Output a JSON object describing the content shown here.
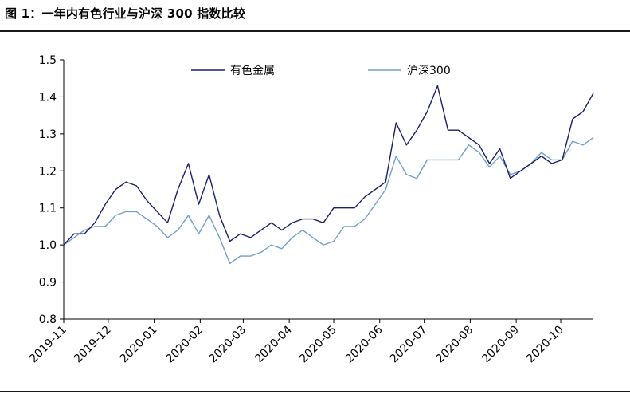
{
  "figure": {
    "title": "图 1：一年内有色行业与沪深 300 指数比较"
  },
  "chart_data": {
    "type": "line",
    "title": "",
    "xlabel": "",
    "ylabel": "",
    "ylim": [
      0.8,
      1.5
    ],
    "yticks": [
      "0.8",
      "0.9",
      "1.0",
      "1.1",
      "1.2",
      "1.3",
      "1.4",
      "1.5"
    ],
    "x_tick_labels": [
      "2019-11",
      "2019-12",
      "2020-01",
      "2020-02",
      "2020-03",
      "2020-04",
      "2020-05",
      "2020-06",
      "2020-07",
      "2020-08",
      "2020-09",
      "2020-10"
    ],
    "x_tick_start": "2019-11-01",
    "x": [
      "2019-11-01",
      "2019-11-08",
      "2019-11-15",
      "2019-11-22",
      "2019-11-29",
      "2019-12-06",
      "2019-12-13",
      "2019-12-20",
      "2019-12-27",
      "2020-01-03",
      "2020-01-10",
      "2020-01-17",
      "2020-01-24",
      "2020-01-31",
      "2020-02-07",
      "2020-02-14",
      "2020-02-21",
      "2020-02-28",
      "2020-03-06",
      "2020-03-13",
      "2020-03-20",
      "2020-03-27",
      "2020-04-03",
      "2020-04-10",
      "2020-04-17",
      "2020-04-24",
      "2020-05-01",
      "2020-05-08",
      "2020-05-15",
      "2020-05-22",
      "2020-05-29",
      "2020-06-05",
      "2020-06-12",
      "2020-06-19",
      "2020-06-26",
      "2020-07-03",
      "2020-07-10",
      "2020-07-17",
      "2020-07-24",
      "2020-07-31",
      "2020-08-07",
      "2020-08-14",
      "2020-08-21",
      "2020-08-28",
      "2020-09-04",
      "2020-09-11",
      "2020-09-18",
      "2020-09-25",
      "2020-10-02",
      "2020-10-09",
      "2020-10-16",
      "2020-10-23"
    ],
    "series": [
      {
        "name": "有色金属",
        "color": "#1b1f6e",
        "values": [
          1.0,
          1.03,
          1.03,
          1.06,
          1.11,
          1.15,
          1.17,
          1.16,
          1.12,
          1.09,
          1.06,
          1.15,
          1.22,
          1.11,
          1.19,
          1.08,
          1.01,
          1.03,
          1.02,
          1.04,
          1.06,
          1.04,
          1.06,
          1.07,
          1.07,
          1.06,
          1.1,
          1.1,
          1.1,
          1.13,
          1.15,
          1.17,
          1.33,
          1.27,
          1.31,
          1.36,
          1.43,
          1.31,
          1.31,
          1.29,
          1.27,
          1.22,
          1.26,
          1.18,
          1.2,
          1.22,
          1.24,
          1.22,
          1.23,
          1.34,
          1.36,
          1.41
        ]
      },
      {
        "name": "沪深300",
        "color": "#6fa0cc",
        "values": [
          1.0,
          1.02,
          1.04,
          1.05,
          1.05,
          1.08,
          1.09,
          1.09,
          1.07,
          1.05,
          1.02,
          1.04,
          1.08,
          1.03,
          1.08,
          1.02,
          0.95,
          0.97,
          0.97,
          0.98,
          1.0,
          0.99,
          1.02,
          1.04,
          1.02,
          1.0,
          1.01,
          1.05,
          1.05,
          1.07,
          1.11,
          1.15,
          1.24,
          1.19,
          1.18,
          1.23,
          1.23,
          1.23,
          1.23,
          1.27,
          1.25,
          1.21,
          1.24,
          1.19,
          1.2,
          1.22,
          1.25,
          1.23,
          1.23,
          1.28,
          1.27,
          1.29
        ]
      }
    ],
    "legend": {
      "placement": "top"
    },
    "grid": false
  }
}
